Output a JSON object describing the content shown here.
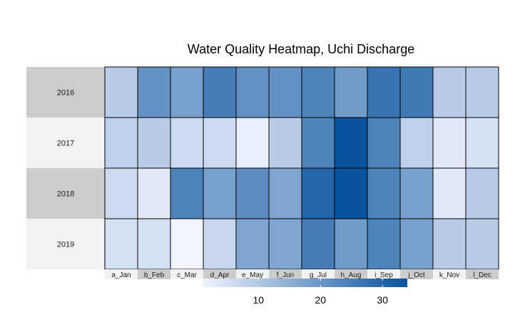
{
  "chart_data": {
    "type": "heatmap",
    "title": "Water Quality Heatmap, Uchi Discharge",
    "rows": [
      "2016",
      "2017",
      "2018",
      "2019"
    ],
    "columns": [
      "a_Jan",
      "b_Feb",
      "c_Mar",
      "d_Apr",
      "e_May",
      "f_Jun",
      "g_Jul",
      "h_Aug",
      "i_Sep",
      "j_Oct",
      "k_Nov",
      "l_Dec"
    ],
    "values": [
      [
        9,
        21,
        18,
        25,
        21,
        21,
        24,
        19,
        27,
        26,
        9,
        9
      ],
      [
        8,
        9,
        6,
        6,
        2,
        9,
        24,
        34,
        24,
        8,
        3,
        5
      ],
      [
        6,
        3,
        24,
        18,
        22,
        17,
        30,
        34,
        24,
        18,
        3,
        9
      ],
      [
        5,
        5,
        1,
        7,
        17,
        17,
        25,
        19,
        24,
        18,
        9,
        9
      ]
    ],
    "row_strip_colors": [
      "#cccccc",
      "#f2f2f2"
    ],
    "col_strip_colors": [
      "#f2f2f2",
      "#cccccc"
    ],
    "color_scale": {
      "low": "#f0f4ff",
      "high": "#08519c",
      "min": 1,
      "max": 34
    },
    "legend": {
      "ticks": [
        10,
        20,
        30
      ],
      "position": "bottom"
    }
  }
}
